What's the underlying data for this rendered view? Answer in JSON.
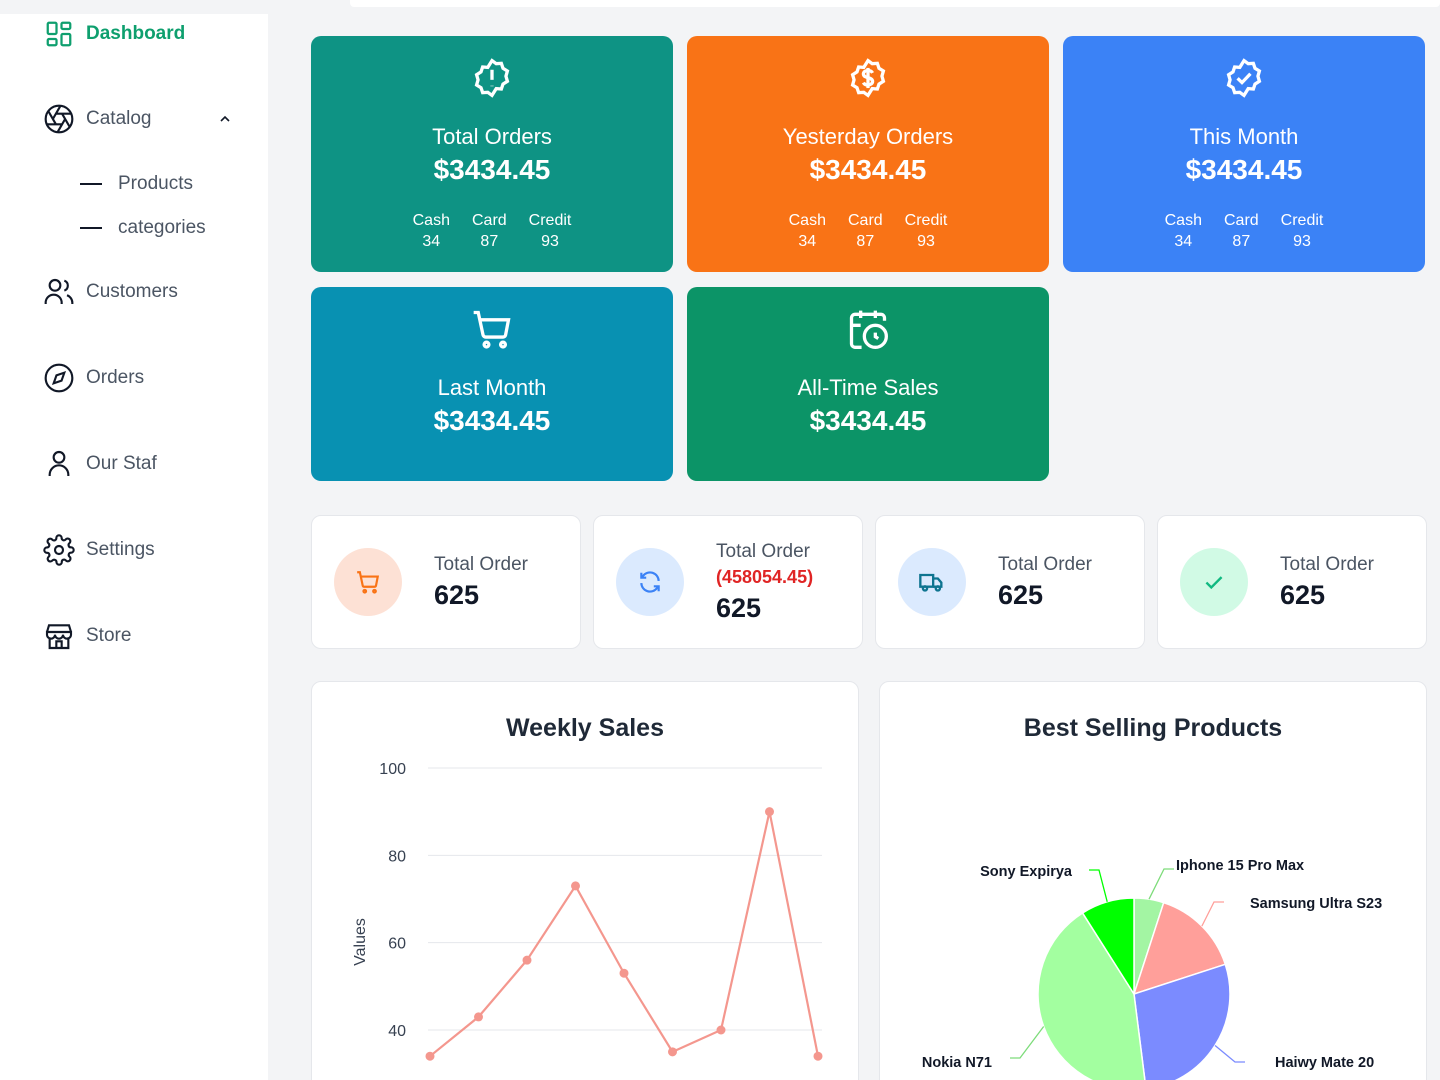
{
  "sidebar": {
    "items": [
      {
        "label": "Dashboard",
        "icon": "dashboard-icon",
        "active": true
      },
      {
        "label": "Catalog",
        "icon": "aperture-icon",
        "expanded": true
      },
      {
        "label": "Customers",
        "icon": "users-icon"
      },
      {
        "label": "Orders",
        "icon": "compass-icon"
      },
      {
        "label": "Our Staf",
        "icon": "user-icon"
      },
      {
        "label": "Settings",
        "icon": "gear-icon"
      },
      {
        "label": "Store",
        "icon": "store-icon"
      }
    ],
    "catalog_children": [
      "Products",
      "categories"
    ]
  },
  "summary_cards": [
    {
      "title": "Total Orders",
      "amount": "$3434.45",
      "color": "#0e9384",
      "icon": "alert-badge-icon",
      "breakdown": [
        {
          "label": "Cash",
          "value": "34"
        },
        {
          "label": "Card",
          "value": "87"
        },
        {
          "label": "Credit",
          "value": "93"
        }
      ]
    },
    {
      "title": "Yesterday Orders",
      "amount": "$3434.45",
      "color": "#f97316",
      "icon": "dollar-badge-icon",
      "breakdown": [
        {
          "label": "Cash",
          "value": "34"
        },
        {
          "label": "Card",
          "value": "87"
        },
        {
          "label": "Credit",
          "value": "93"
        }
      ]
    },
    {
      "title": "This Month",
      "amount": "$3434.45",
      "color": "#3b82f6",
      "icon": "check-badge-icon",
      "breakdown": [
        {
          "label": "Cash",
          "value": "34"
        },
        {
          "label": "Card",
          "value": "87"
        },
        {
          "label": "Credit",
          "value": "93"
        }
      ]
    },
    {
      "title": "Last Month",
      "amount": "$3434.45",
      "color": "#0891b2",
      "icon": "cart-icon"
    },
    {
      "title": "All-Time Sales",
      "amount": "$3434.45",
      "color": "#0c9467",
      "icon": "calendar-clock-icon"
    }
  ],
  "stat_cards": [
    {
      "label": "Total Order",
      "value": "625",
      "icon": "cart-icon",
      "color": "#f97316",
      "bg": "#fde1d5"
    },
    {
      "label": "Total Order",
      "extra": "(458054.45)",
      "value": "625",
      "icon": "refresh-icon",
      "color": "#3b82f6",
      "bg": "#dbeafe"
    },
    {
      "label": "Total Order",
      "value": "625",
      "icon": "truck-icon",
      "color": "#0e7490",
      "bg": "#dbeafe"
    },
    {
      "label": "Total Order",
      "value": "625",
      "icon": "check-icon",
      "color": "#10b981",
      "bg": "#d1fae5"
    }
  ],
  "chart_data": [
    {
      "type": "line",
      "title": "Weekly Sales",
      "ylabel": "Values",
      "xlabel": "",
      "ylim": [
        32,
        100
      ],
      "yticks": [
        40,
        60,
        80,
        100
      ],
      "grid": true,
      "series": [
        {
          "values": [
            34,
            43,
            56,
            73,
            53,
            35,
            40,
            90,
            34
          ],
          "color": "#f4978e"
        }
      ]
    },
    {
      "type": "pie",
      "title": "Best Selling Products",
      "slices": [
        {
          "label": "Iphone 15 Pro Max",
          "value": 5,
          "color": "#a3f5a3"
        },
        {
          "label": "Samsung Ultra S23",
          "value": 15,
          "color": "#ff9f9a"
        },
        {
          "label": "Haiwy Mate 20",
          "value": 28,
          "color": "#7b8bff"
        },
        {
          "label": "Nokia N71",
          "value": 43,
          "color": "#a3ffa0"
        },
        {
          "label": "Sony Expirya",
          "value": 9,
          "color": "#00ff00"
        }
      ]
    }
  ]
}
